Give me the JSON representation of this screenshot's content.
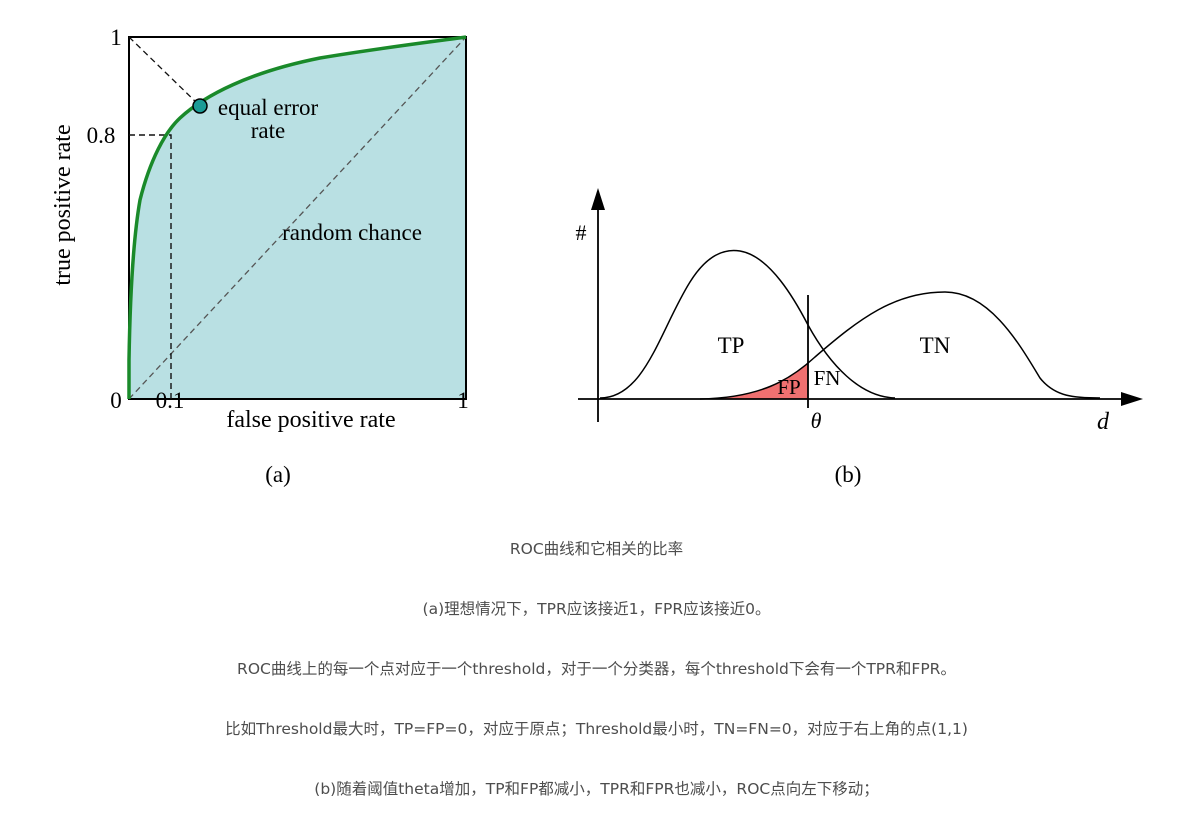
{
  "panel_a": {
    "ylabel": "true positive rate",
    "xlabel": "false positive rate",
    "ytick_top": "1",
    "ytick_mid": "0.8",
    "xtick_zero": "0",
    "xtick_mid": "0.1",
    "xtick_right": "1",
    "annotation_eer_1": "equal error",
    "annotation_eer_2": "rate",
    "annotation_random": "random chance",
    "sublabel": "(a)",
    "colors": {
      "fill": "#b9e0e3",
      "curve": "#1a8a2a",
      "marker": "#1b9b96"
    }
  },
  "panel_b": {
    "y_axis_label": "#",
    "x_axis_label": "d",
    "threshold_label": "θ",
    "tp": "TP",
    "tn": "TN",
    "fp": "FP",
    "fn": "FN",
    "sublabel": "(b)",
    "colors": {
      "fp_fill": "#f07070"
    }
  },
  "caption": {
    "title": "ROC曲线和它相关的比率",
    "line1": "(a)理想情况下，TPR应该接近1，FPR应该接近0。",
    "line2": "ROC曲线上的每一个点对应于一个threshold，对于一个分类器，每个threshold下会有一个TPR和FPR。",
    "line3": "比如Threshold最大时，TP=FP=0，对应于原点；Threshold最小时，TN=FN=0，对应于右上角的点(1,1)",
    "line4": "(b)随着阈值theta增加，TP和FP都减小，TPR和FPR也减小，ROC点向左下移动；"
  }
}
